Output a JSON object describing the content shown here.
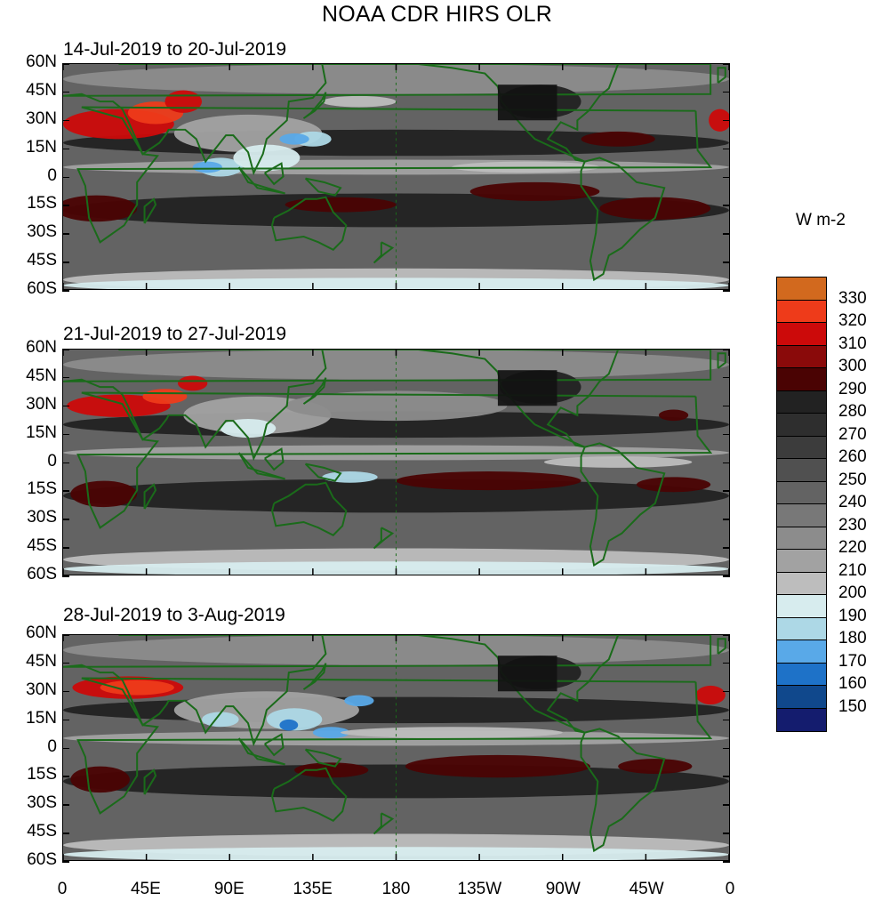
{
  "title": "NOAA CDR HIRS OLR",
  "units": "W m-2",
  "panels": [
    {
      "label": "14-Jul-2019 to 20-Jul-2019"
    },
    {
      "label": "21-Jul-2019 to 27-Jul-2019"
    },
    {
      "label": "28-Jul-2019 to 3-Aug-2019"
    }
  ],
  "lat_ticks": [
    "60N",
    "45N",
    "30N",
    "15N",
    "0",
    "15S",
    "30S",
    "45S",
    "60S"
  ],
  "lon_ticks": [
    "0",
    "45E",
    "90E",
    "135E",
    "180",
    "135W",
    "90W",
    "45W",
    "0"
  ],
  "colorbar": {
    "levels": [
      "330",
      "320",
      "310",
      "300",
      "290",
      "280",
      "270",
      "260",
      "250",
      "240",
      "230",
      "220",
      "210",
      "200",
      "190",
      "180",
      "170",
      "160",
      "150"
    ],
    "colors": [
      "#d2691e",
      "#ee3b1a",
      "#cc0a0a",
      "#8a0a0a",
      "#4a0303",
      "#222222",
      "#2e2e2e",
      "#3c3c3c",
      "#505050",
      "#636363",
      "#787878",
      "#8c8c8c",
      "#a2a2a2",
      "#bdbdbd",
      "#d7ecee",
      "#add8e6",
      "#59a9e8",
      "#1e72c8",
      "#10488c",
      "#141c6e"
    ]
  },
  "style": {
    "coast_color": "#1a6b1a",
    "background": "#5a5a5a"
  }
}
